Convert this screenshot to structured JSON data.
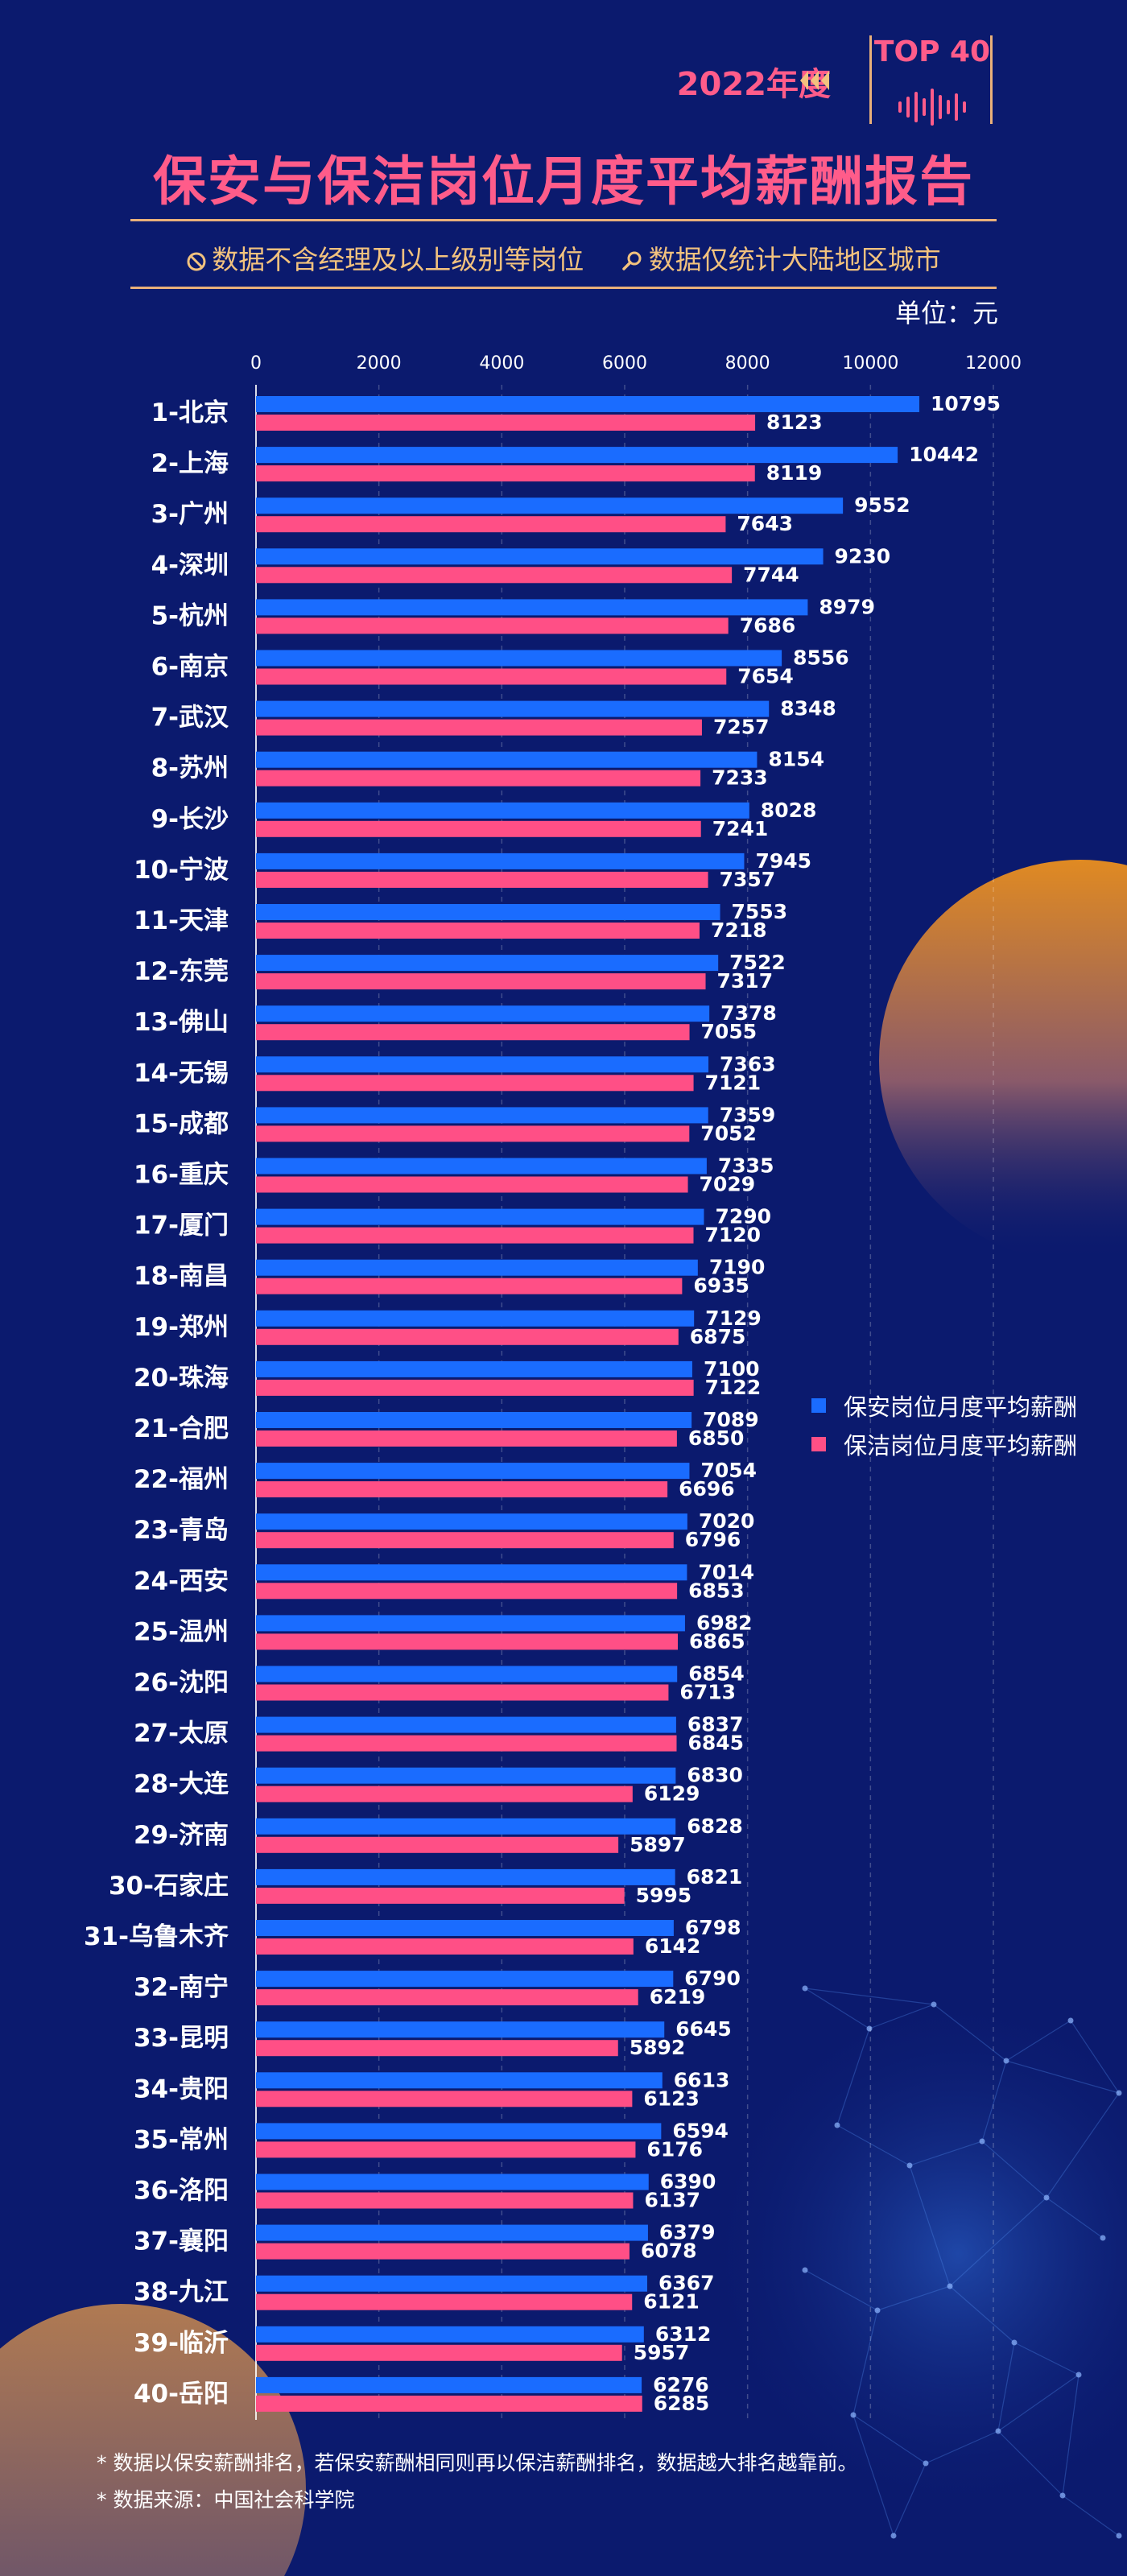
{
  "header": {
    "year": "2022年度",
    "badge": "TOP 40",
    "title": "保安与保洁岗位月度平均薪酬报告",
    "notes": [
      "数据不含经理及以上级别等岗位",
      "数据仅统计大陆地区城市"
    ]
  },
  "colors": {
    "background": "#0b1a6e",
    "security": "#1a6cff",
    "cleaning": "#ff4f86",
    "accent": "#e9b07a",
    "title": "#ff5c8a"
  },
  "chart_data": {
    "type": "bar",
    "orientation": "horizontal",
    "unit_label": "单位：元",
    "xlim": [
      0,
      12000
    ],
    "x_ticks": [
      "0",
      "2000",
      "4000",
      "6000",
      "8000",
      "10000",
      "12000"
    ],
    "grid": "vertical dashed",
    "legend_position": "right",
    "categories": [
      "1-北京",
      "2-上海",
      "3-广州",
      "4-深圳",
      "5-杭州",
      "6-南京",
      "7-武汉",
      "8-苏州",
      "9-长沙",
      "10-宁波",
      "11-天津",
      "12-东莞",
      "13-佛山",
      "14-无锡",
      "15-成都",
      "16-重庆",
      "17-厦门",
      "18-南昌",
      "19-郑州",
      "20-珠海",
      "21-合肥",
      "22-福州",
      "23-青岛",
      "24-西安",
      "25-温州",
      "26-沈阳",
      "27-太原",
      "28-大连",
      "29-济南",
      "30-石家庄",
      "31-乌鲁木齐",
      "32-南宁",
      "33-昆明",
      "34-贵阳",
      "35-常州",
      "36-洛阳",
      "37-襄阳",
      "38-九江",
      "39-临沂",
      "40-岳阳"
    ],
    "series": [
      {
        "name": "保安岗位月度平均薪酬",
        "color": "#1a6cff",
        "values": [
          10795,
          10442,
          9552,
          9230,
          8979,
          8556,
          8348,
          8154,
          8028,
          7945,
          7553,
          7522,
          7378,
          7363,
          7359,
          7335,
          7290,
          7190,
          7129,
          7100,
          7089,
          7054,
          7020,
          7014,
          6982,
          6854,
          6837,
          6830,
          6828,
          6821,
          6798,
          6790,
          6645,
          6613,
          6594,
          6390,
          6379,
          6367,
          6312,
          6276
        ]
      },
      {
        "name": "保洁岗位月度平均薪酬",
        "color": "#ff4f86",
        "values": [
          8123,
          8119,
          7643,
          7744,
          7686,
          7654,
          7257,
          7233,
          7241,
          7357,
          7218,
          7317,
          7055,
          7121,
          7052,
          7029,
          7120,
          6935,
          6875,
          7122,
          6850,
          6696,
          6796,
          6853,
          6865,
          6713,
          6845,
          6129,
          5897,
          5995,
          6142,
          6219,
          5892,
          6123,
          6176,
          6137,
          6078,
          6121,
          5957,
          6285
        ]
      }
    ]
  },
  "footnotes": [
    "* 数据以保安薪酬排名，若保安薪酬相同则再以保洁薪酬排名，数据越大排名越靠前。",
    "* 数据来源：中国社会科学院"
  ]
}
